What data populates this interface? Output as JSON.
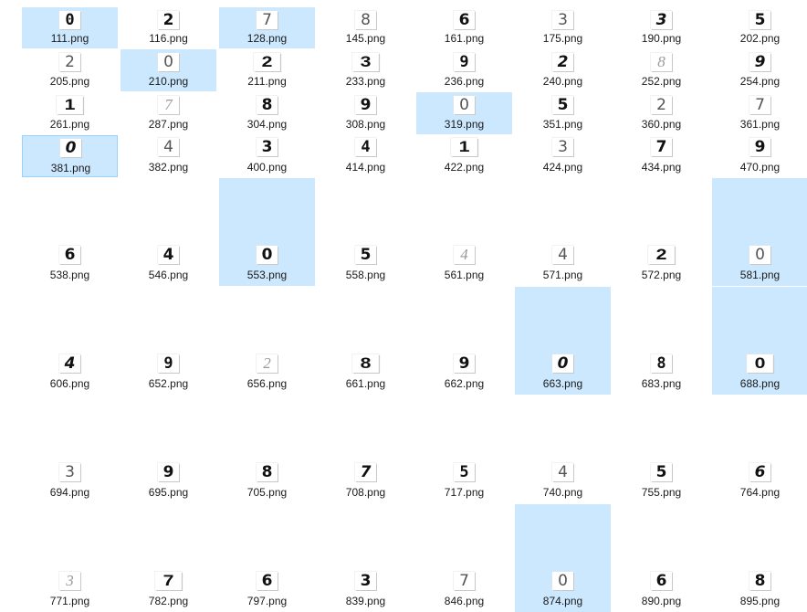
{
  "file_view": {
    "items": [
      {
        "name": "111.png",
        "digit": "0",
        "style": "mono",
        "selected": true
      },
      {
        "name": "116.png",
        "digit": "2",
        "style": "bold",
        "selected": false
      },
      {
        "name": "128.png",
        "digit": "7",
        "style": "thin",
        "selected": true
      },
      {
        "name": "145.png",
        "digit": "8",
        "style": "thin",
        "selected": false
      },
      {
        "name": "161.png",
        "digit": "6",
        "style": "bold",
        "selected": false
      },
      {
        "name": "175.png",
        "digit": "3",
        "style": "thin",
        "selected": false
      },
      {
        "name": "190.png",
        "digit": "3",
        "style": "italic",
        "selected": false
      },
      {
        "name": "202.png",
        "digit": "5",
        "style": "bold",
        "selected": false
      },
      {
        "name": "205.png",
        "digit": "2",
        "style": "thin",
        "selected": false
      },
      {
        "name": "210.png",
        "digit": "0",
        "style": "thin",
        "selected": true
      },
      {
        "name": "211.png",
        "digit": "2",
        "style": "heavy",
        "selected": false
      },
      {
        "name": "233.png",
        "digit": "3",
        "style": "heavy",
        "selected": false
      },
      {
        "name": "236.png",
        "digit": "9",
        "style": "mono",
        "selected": false
      },
      {
        "name": "240.png",
        "digit": "2",
        "style": "italic",
        "selected": false
      },
      {
        "name": "252.png",
        "digit": "8",
        "style": "faint",
        "selected": false
      },
      {
        "name": "254.png",
        "digit": "9",
        "style": "italic",
        "selected": false
      },
      {
        "name": "261.png",
        "digit": "1",
        "style": "heavy",
        "selected": false
      },
      {
        "name": "287.png",
        "digit": "7",
        "style": "faint",
        "selected": false
      },
      {
        "name": "304.png",
        "digit": "8",
        "style": "bold",
        "selected": false
      },
      {
        "name": "308.png",
        "digit": "9",
        "style": "bold",
        "selected": false
      },
      {
        "name": "319.png",
        "digit": "0",
        "style": "thin",
        "selected": true
      },
      {
        "name": "351.png",
        "digit": "5",
        "style": "bold",
        "selected": false
      },
      {
        "name": "360.png",
        "digit": "2",
        "style": "thin",
        "selected": false
      },
      {
        "name": "361.png",
        "digit": "7",
        "style": "thin",
        "selected": false
      },
      {
        "name": "381.png",
        "digit": "0",
        "style": "italic",
        "selected": true,
        "focused": true
      },
      {
        "name": "382.png",
        "digit": "4",
        "style": "thin",
        "selected": false
      },
      {
        "name": "400.png",
        "digit": "3",
        "style": "bold",
        "selected": false
      },
      {
        "name": "414.png",
        "digit": "4",
        "style": "mono",
        "selected": false
      },
      {
        "name": "422.png",
        "digit": "1",
        "style": "heavy",
        "selected": false
      },
      {
        "name": "424.png",
        "digit": "3",
        "style": "thin",
        "selected": false
      },
      {
        "name": "434.png",
        "digit": "7",
        "style": "bold",
        "selected": false
      },
      {
        "name": "470.png",
        "digit": "9",
        "style": "bold",
        "selected": false
      },
      {
        "name": "538.png",
        "digit": "6",
        "style": "bold",
        "selected": false
      },
      {
        "name": "546.png",
        "digit": "4",
        "style": "bold",
        "selected": false
      },
      {
        "name": "553.png",
        "digit": "0",
        "style": "bold",
        "selected": true
      },
      {
        "name": "558.png",
        "digit": "5",
        "style": "bold",
        "selected": false
      },
      {
        "name": "561.png",
        "digit": "4",
        "style": "faint",
        "selected": false
      },
      {
        "name": "571.png",
        "digit": "4",
        "style": "thin",
        "selected": false
      },
      {
        "name": "572.png",
        "digit": "2",
        "style": "heavy",
        "selected": false
      },
      {
        "name": "581.png",
        "digit": "0",
        "style": "thin",
        "selected": true
      },
      {
        "name": "606.png",
        "digit": "4",
        "style": "italic",
        "selected": false
      },
      {
        "name": "652.png",
        "digit": "9",
        "style": "mono",
        "selected": false
      },
      {
        "name": "656.png",
        "digit": "2",
        "style": "faint",
        "selected": false
      },
      {
        "name": "661.png",
        "digit": "8",
        "style": "heavy",
        "selected": false
      },
      {
        "name": "662.png",
        "digit": "9",
        "style": "bold",
        "selected": false
      },
      {
        "name": "663.png",
        "digit": "0",
        "style": "italic",
        "selected": true
      },
      {
        "name": "683.png",
        "digit": "8",
        "style": "mono",
        "selected": false
      },
      {
        "name": "688.png",
        "digit": "0",
        "style": "heavy",
        "selected": true
      },
      {
        "name": "694.png",
        "digit": "3",
        "style": "thin",
        "selected": false
      },
      {
        "name": "695.png",
        "digit": "9",
        "style": "bold",
        "selected": false
      },
      {
        "name": "705.png",
        "digit": "8",
        "style": "bold",
        "selected": false
      },
      {
        "name": "708.png",
        "digit": "7",
        "style": "italic",
        "selected": false
      },
      {
        "name": "717.png",
        "digit": "5",
        "style": "mono",
        "selected": false
      },
      {
        "name": "740.png",
        "digit": "4",
        "style": "thin",
        "selected": false
      },
      {
        "name": "755.png",
        "digit": "5",
        "style": "bold",
        "selected": false
      },
      {
        "name": "764.png",
        "digit": "6",
        "style": "italic",
        "selected": false
      },
      {
        "name": "771.png",
        "digit": "3",
        "style": "faint",
        "selected": false
      },
      {
        "name": "782.png",
        "digit": "7",
        "style": "heavy",
        "selected": false
      },
      {
        "name": "797.png",
        "digit": "6",
        "style": "bold",
        "selected": false
      },
      {
        "name": "839.png",
        "digit": "3",
        "style": "bold",
        "selected": false
      },
      {
        "name": "846.png",
        "digit": "7",
        "style": "thin",
        "selected": false
      },
      {
        "name": "874.png",
        "digit": "0",
        "style": "thin",
        "selected": true
      },
      {
        "name": "890.png",
        "digit": "6",
        "style": "bold",
        "selected": false
      },
      {
        "name": "895.png",
        "digit": "8",
        "style": "bold",
        "selected": false
      }
    ]
  }
}
